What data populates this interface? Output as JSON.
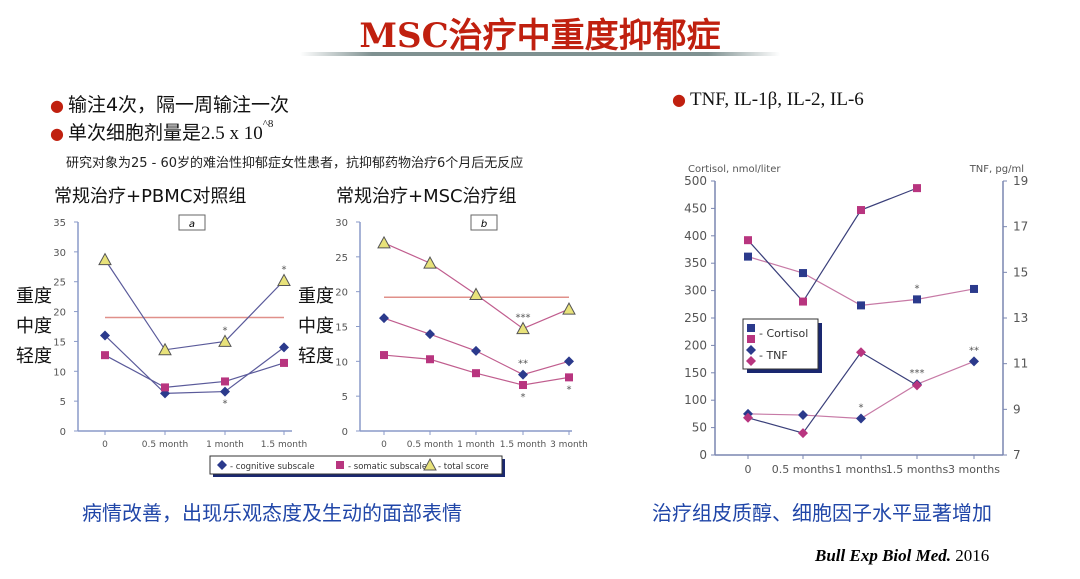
{
  "title": "MSC治疗中重度抑郁症",
  "bullets": [
    {
      "text": "输注4次，隔一周输注一次"
    },
    {
      "text": "单次细胞剂量是",
      "value": "2.5 x 10",
      "exp": "^8"
    }
  ],
  "note": "研究对象为25 - 60岁的难治性抑郁症女性患者，抗抑郁药物治疗6个月后无反应",
  "right_bullet": "TNF, IL-1β, IL-2, IL-6",
  "group_titles": [
    "常规治疗+PBMC对照组",
    "常规治疗+MSC治疗组"
  ],
  "severity_labels": [
    "重度",
    "中度",
    "轻度"
  ],
  "captions": [
    "病情改善，出现乐观态度及生动的面部表情",
    "治疗组皮质醇、细胞因子水平显著增加"
  ],
  "citation": {
    "journal": "Bull Exp Biol Med.",
    "year": "2016"
  },
  "colors": {
    "title": "#c0200f",
    "caption": "#2046a8",
    "navy": "#2b3a8c",
    "magenta": "#b8357f",
    "yellow": "#e8e27a",
    "ref_line": "#e0908a"
  },
  "chart_data": [
    {
      "type": "line",
      "panel_label": "a",
      "categories": [
        "0",
        "0.5 month",
        "1 month",
        "1.5 month"
      ],
      "ylim": [
        0,
        35
      ],
      "yticks": [
        0,
        5,
        10,
        15,
        20,
        25,
        30,
        35
      ],
      "series": [
        {
          "name": "- cognitive subscale",
          "marker": "diamond",
          "values": [
            16,
            6.3,
            6.6,
            14
          ],
          "annotations": [
            null,
            null,
            "*",
            null
          ],
          "annotation_pos": "below"
        },
        {
          "name": "- somatic subscale",
          "marker": "square",
          "values": [
            12.7,
            7.3,
            8.3,
            11.4
          ],
          "annotations": [
            null,
            null,
            null,
            null
          ]
        },
        {
          "name": "- total score",
          "marker": "triangle",
          "values": [
            28.7,
            13.6,
            15,
            25.2
          ],
          "annotations": [
            null,
            null,
            "*",
            "*"
          ],
          "annotation_pos": "above"
        }
      ],
      "reference_line": 19,
      "legend": "bottom"
    },
    {
      "type": "line",
      "panel_label": "b",
      "categories": [
        "0",
        "0.5 month",
        "1 month",
        "1.5 month",
        "3 month"
      ],
      "ylim": [
        0,
        30
      ],
      "yticks": [
        0,
        5,
        10,
        15,
        20,
        25,
        30
      ],
      "series": [
        {
          "name": "- cognitive subscale",
          "marker": "diamond",
          "values": [
            16.2,
            13.9,
            11.5,
            8.1,
            10
          ],
          "annotations": [
            null,
            null,
            null,
            "**",
            null
          ],
          "annotation_pos": "above"
        },
        {
          "name": "- somatic subscale",
          "marker": "square",
          "values": [
            10.9,
            10.3,
            8.3,
            6.6,
            7.7
          ],
          "annotations": [
            null,
            null,
            null,
            "*",
            "*"
          ],
          "annotation_pos": "below"
        },
        {
          "name": "- total score",
          "marker": "triangle",
          "values": [
            27,
            24.1,
            19.6,
            14.7,
            17.5
          ],
          "annotations": [
            null,
            null,
            null,
            "***",
            null
          ],
          "annotation_pos": "above"
        }
      ],
      "reference_line": 19.2,
      "legend": "bottom"
    },
    {
      "type": "line",
      "categories": [
        "0",
        "0.5 months",
        "1 months",
        "1.5 months",
        "3 months"
      ],
      "ylabel": "Cortisol, nmol/liter",
      "ylim": [
        0,
        500
      ],
      "yticks": [
        0,
        50,
        100,
        150,
        200,
        250,
        300,
        350,
        400,
        450,
        500
      ],
      "y2label": "TNF, pg/ml",
      "y2lim": [
        7,
        19
      ],
      "y2ticks": [
        7,
        9,
        11,
        13,
        15,
        17,
        19
      ],
      "series": [
        {
          "name": "- Cortisol",
          "marker": "square",
          "color": "navy",
          "axis": "left",
          "values": [
            362,
            332,
            273,
            284,
            303
          ],
          "annotations": [
            null,
            null,
            null,
            "*",
            null
          ],
          "annotation_pos": "above"
        },
        {
          "name": "",
          "marker": "square",
          "color": "magenta",
          "axis": "left",
          "values": [
            392,
            280,
            447,
            487,
            null
          ],
          "annotations": [
            null,
            null,
            null,
            null,
            null
          ]
        },
        {
          "name": "- TNF",
          "marker": "diamond",
          "color": "navy",
          "axis": "right",
          "values": [
            8.8,
            8.75,
            8.6,
            10.1,
            11.1
          ],
          "annotations": [
            null,
            null,
            "*",
            "***",
            "**"
          ],
          "annotation_pos": "above"
        },
        {
          "name": "",
          "marker": "diamond",
          "color": "magenta",
          "axis": "right",
          "values": [
            8.63,
            7.96,
            11.5,
            10.05,
            null
          ],
          "annotations": [
            null,
            null,
            null,
            null,
            null
          ]
        }
      ],
      "legend": "left-middle"
    }
  ]
}
